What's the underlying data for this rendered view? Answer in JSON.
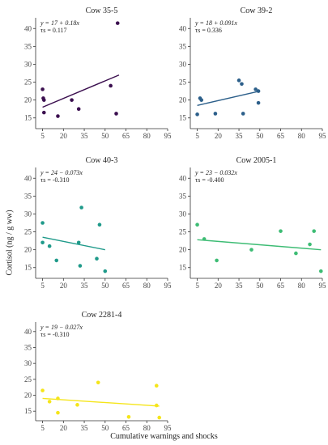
{
  "figure": {
    "ylabel": "Cortisol (ng / g ww)",
    "xlabel": "Cumulative warnings and shocks"
  },
  "chart_data": [
    {
      "type": "scatter",
      "title": "Cow 35-5",
      "equation": "y = 17 + 0.18x",
      "tau": "τs = 0.117",
      "color": "#3b0f4f",
      "xlim": [
        0,
        95
      ],
      "ylim": [
        12,
        43
      ],
      "xticks": [
        5,
        20,
        35,
        50,
        65,
        80,
        95
      ],
      "yticks": [
        15,
        20,
        25,
        30,
        35,
        40
      ],
      "points": [
        [
          5,
          23
        ],
        [
          5.5,
          20.5
        ],
        [
          6,
          20
        ],
        [
          6,
          16.5
        ],
        [
          16,
          15.5
        ],
        [
          26,
          20
        ],
        [
          31,
          17.5
        ],
        [
          54,
          24
        ],
        [
          58,
          16.2
        ],
        [
          59,
          41.5
        ]
      ],
      "fit": {
        "x": [
          5,
          60
        ],
        "y": [
          18,
          27
        ]
      }
    },
    {
      "type": "scatter",
      "title": "Cow 39-2",
      "equation": "y = 18 + 0.091x",
      "tau": "τs = 0.336",
      "color": "#2c5f8a",
      "xlim": [
        0,
        95
      ],
      "ylim": [
        12,
        43
      ],
      "xticks": [
        5,
        20,
        35,
        50,
        65,
        80,
        95
      ],
      "yticks": [
        15,
        20,
        25,
        30,
        35,
        40
      ],
      "points": [
        [
          5,
          16
        ],
        [
          7,
          20.5
        ],
        [
          8,
          20
        ],
        [
          18,
          16.2
        ],
        [
          35,
          25.5
        ],
        [
          37,
          24.5
        ],
        [
          38,
          16.2
        ],
        [
          47,
          23
        ],
        [
          49,
          22.5
        ],
        [
          49,
          19.2
        ]
      ],
      "fit": {
        "x": [
          5,
          50
        ],
        "y": [
          18.5,
          22.5
        ]
      }
    },
    {
      "type": "scatter",
      "title": "Cow 40-3",
      "equation": "y = 24 − 0.073x",
      "tau": "τs = -0.310",
      "color": "#1f9a8a",
      "xlim": [
        0,
        95
      ],
      "ylim": [
        12,
        43
      ],
      "xticks": [
        5,
        20,
        35,
        50,
        65,
        80,
        95
      ],
      "yticks": [
        15,
        20,
        25,
        30,
        35,
        40
      ],
      "points": [
        [
          5,
          27.5
        ],
        [
          5,
          22
        ],
        [
          10,
          21
        ],
        [
          15,
          17
        ],
        [
          31,
          22
        ],
        [
          32,
          15.5
        ],
        [
          33,
          31.8
        ],
        [
          44,
          17.5
        ],
        [
          46,
          27
        ],
        [
          50,
          14
        ]
      ],
      "fit": {
        "x": [
          5,
          50
        ],
        "y": [
          23.5,
          20
        ]
      }
    },
    {
      "type": "scatter",
      "title": "Cow 2005-1",
      "equation": "y = 23 − 0.032x",
      "tau": "τs = -0.400",
      "color": "#3dbc74",
      "xlim": [
        0,
        95
      ],
      "ylim": [
        12,
        43
      ],
      "xticks": [
        5,
        20,
        35,
        50,
        65,
        80,
        95
      ],
      "yticks": [
        15,
        20,
        25,
        30,
        35,
        40
      ],
      "points": [
        [
          5,
          27
        ],
        [
          10,
          23
        ],
        [
          19,
          17
        ],
        [
          44,
          20
        ],
        [
          65,
          25.2
        ],
        [
          76,
          19
        ],
        [
          86,
          21.5
        ],
        [
          89,
          25.2
        ],
        [
          94,
          14
        ]
      ],
      "fit": {
        "x": [
          5,
          94
        ],
        "y": [
          22.8,
          20
        ]
      }
    },
    {
      "type": "scatter",
      "title": "Cow 2281-4",
      "equation": "y = 19 − 0.027x",
      "tau": "τs = -0.310",
      "color": "#f5e51a",
      "xlim": [
        0,
        95
      ],
      "ylim": [
        12,
        43
      ],
      "xticks": [
        5,
        20,
        35,
        50,
        65,
        80,
        95
      ],
      "yticks": [
        15,
        20,
        25,
        30,
        35,
        40
      ],
      "points": [
        [
          5,
          21.5
        ],
        [
          10,
          18
        ],
        [
          16,
          14.5
        ],
        [
          16,
          19
        ],
        [
          30,
          17
        ],
        [
          45,
          24
        ],
        [
          67,
          13.2
        ],
        [
          87,
          16.8
        ],
        [
          87,
          23
        ],
        [
          89,
          13
        ]
      ],
      "fit": {
        "x": [
          5,
          89
        ],
        "y": [
          19,
          16.6
        ]
      }
    }
  ]
}
